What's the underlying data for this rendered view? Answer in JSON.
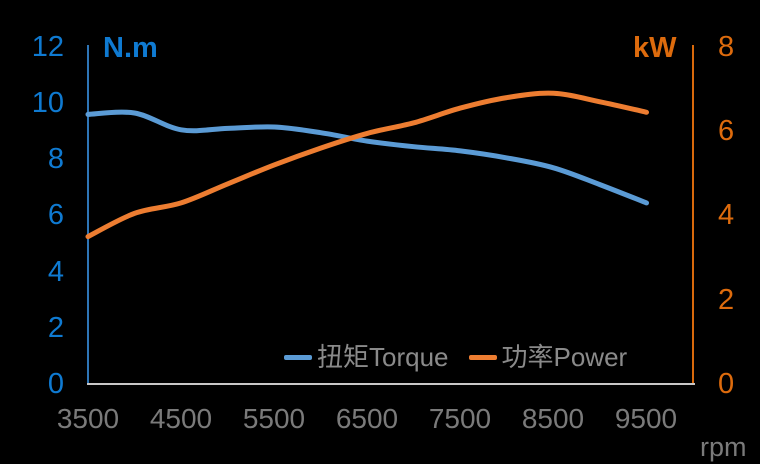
{
  "chart_data": {
    "type": "line",
    "title": "",
    "background": "#000000",
    "grid": false,
    "x": [
      3500,
      4000,
      4500,
      5000,
      5500,
      6000,
      6500,
      7000,
      7500,
      8000,
      8500,
      9000,
      9500
    ],
    "x_axis": {
      "label": "rpm",
      "min": 3500,
      "max": 10000,
      "tick_labels": [
        "3500",
        "4500",
        "5500",
        "6500",
        "7500",
        "8500",
        "9500"
      ],
      "tick_values": [
        3500,
        4500,
        5500,
        6500,
        7500,
        8500,
        9500
      ],
      "line_color": "#C9C7C7",
      "label_color": "#7A7A7A"
    },
    "left_axis": {
      "label": "N.m",
      "min": 0,
      "max": 12,
      "tick_labels": [
        "12",
        "10",
        "8",
        "6",
        "4",
        "2",
        "0"
      ],
      "tick_values": [
        12,
        10,
        8,
        6,
        4,
        2,
        0
      ],
      "text_color": "#0F7AD1",
      "line_color": "#2E75B6"
    },
    "right_axis": {
      "label": "kW",
      "min": 0,
      "max": 8,
      "tick_labels": [
        "8",
        "6",
        "4",
        "2",
        "0"
      ],
      "tick_values": [
        8,
        6,
        4,
        2,
        0
      ],
      "text_color": "#DD6B0D",
      "line_color": "#D9690B"
    },
    "series": [
      {
        "name": "扭矩Torque",
        "axis": "left",
        "unit": "N.m",
        "color": "#5B9BD5",
        "values": [
          9.6,
          9.65,
          9.05,
          9.1,
          9.15,
          8.95,
          8.65,
          8.45,
          8.3,
          8.05,
          7.7,
          7.1,
          6.45
        ]
      },
      {
        "name": "功率Power",
        "axis": "right",
        "unit": "kW",
        "color": "#ED7D31",
        "values": [
          3.5,
          4.05,
          4.3,
          4.75,
          5.2,
          5.6,
          5.95,
          6.2,
          6.55,
          6.8,
          6.9,
          6.7,
          6.45
        ]
      }
    ],
    "legend": {
      "position": "bottom-center",
      "text_color": "#8A8A8A"
    }
  }
}
